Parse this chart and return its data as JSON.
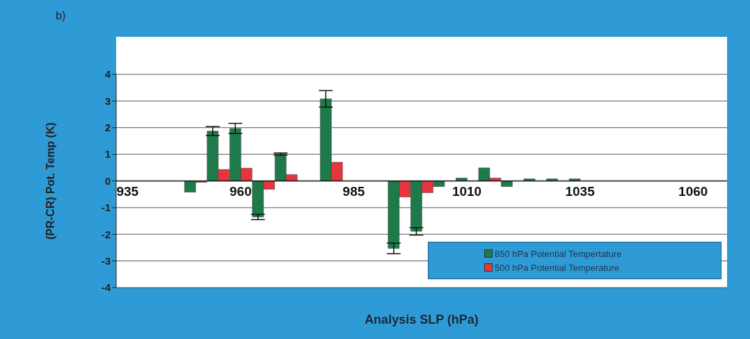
{
  "chart_data": {
    "type": "bar",
    "annotations": [
      "b)"
    ],
    "xlabel": "Analysis SLP (hPa)",
    "ylabel": "(PR-CR) Pot. Temp (K)",
    "categories": [
      "935",
      null,
      null,
      null,
      null,
      "960",
      null,
      null,
      null,
      null,
      "985",
      null,
      null,
      null,
      null,
      "1010",
      null,
      null,
      null,
      null,
      "1035",
      null,
      null,
      null,
      null,
      "1060",
      null
    ],
    "series": [
      {
        "name": "850 hPa Potential Tempertature",
        "color": "#1e7a4a",
        "values": [
          0,
          0,
          0,
          -0.42,
          1.87,
          1.97,
          -1.35,
          1.01,
          0,
          3.08,
          0,
          0,
          -2.53,
          -1.89,
          -0.21,
          0.11,
          0.49,
          -0.21,
          0.08,
          0.08,
          0.08,
          0,
          0,
          0,
          0,
          0,
          0
        ],
        "errors": [
          null,
          null,
          null,
          null,
          0.17,
          0.19,
          0.1,
          0.04,
          null,
          0.31,
          null,
          null,
          0.2,
          0.14,
          null,
          null,
          null,
          null,
          null,
          null,
          null,
          null,
          null,
          null,
          null,
          null,
          null
        ]
      },
      {
        "name": "500 hPa Potential Temperature",
        "color": "#e8343c",
        "values": [
          0,
          0,
          0,
          -0.05,
          0.43,
          0.48,
          -0.31,
          0.24,
          0,
          0.7,
          0,
          0,
          -0.6,
          -0.44,
          0,
          0,
          0.11,
          0,
          0,
          0,
          0,
          0,
          0,
          0,
          0,
          0,
          0
        ]
      }
    ],
    "ylim": [
      -4,
      4
    ],
    "yticks": [
      -4,
      -3,
      -2,
      -1,
      0,
      1,
      2,
      3,
      4
    ],
    "grid": "y",
    "legend": "bottom right"
  }
}
